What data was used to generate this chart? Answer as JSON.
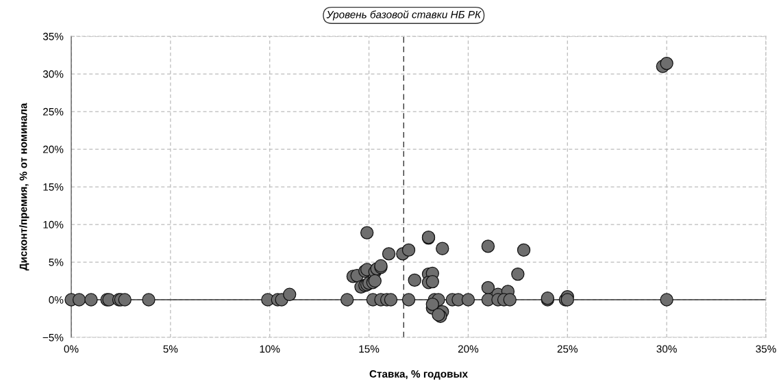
{
  "chart_data": {
    "type": "scatter",
    "xlabel": "Ставка, % годовых",
    "ylabel": "Дисконт/премия, % от номинала",
    "xlim": [
      0,
      35
    ],
    "ylim": [
      -5,
      35
    ],
    "xticks": [
      {
        "value": 0,
        "label": "0%"
      },
      {
        "value": 5,
        "label": "5%"
      },
      {
        "value": 10,
        "label": "10%"
      },
      {
        "value": 15,
        "label": "15%"
      },
      {
        "value": 20,
        "label": "20%"
      },
      {
        "value": 25,
        "label": "25%"
      },
      {
        "value": 30,
        "label": "30%"
      },
      {
        "value": 35,
        "label": "35%"
      }
    ],
    "yticks": [
      {
        "value": -5,
        "label": "−5%"
      },
      {
        "value": 0,
        "label": "0%"
      },
      {
        "value": 5,
        "label": "5%"
      },
      {
        "value": 10,
        "label": "10%"
      },
      {
        "value": 15,
        "label": "15%"
      },
      {
        "value": 20,
        "label": "20%"
      },
      {
        "value": 25,
        "label": "25%"
      },
      {
        "value": 30,
        "label": "30%"
      },
      {
        "value": 35,
        "label": "35%"
      }
    ],
    "grid": true,
    "marker": "circle",
    "ref_lines": [
      {
        "axis": "x",
        "value": 16.75,
        "label": "Уровень базовой ставки НБ РК",
        "color": "#333333",
        "line_style": "dashed"
      }
    ],
    "series": [
      {
        "color": "#6e6e6e",
        "x": [
          0,
          0.4,
          1.0,
          1.8,
          1.9,
          2.4,
          2.5,
          2.7,
          3.9,
          9.9,
          10.4,
          10.6,
          11.0,
          14.9,
          18.0,
          18.0,
          18.7,
          21.0,
          22.8,
          16.0,
          16.7,
          17.0,
          22.5,
          14.2,
          14.4,
          14.8,
          14.9,
          15.3,
          15.4,
          15.6,
          15.6,
          14.6,
          14.8,
          14.9,
          15.0,
          15.2,
          15.3,
          17.3,
          18.0,
          18.2,
          18.0,
          18.2,
          21.0,
          21.5,
          22.0,
          13.9,
          15.2,
          15.6,
          15.9,
          16.1,
          17.0,
          18.3,
          18.5,
          19.2,
          19.5,
          20.0,
          21.0,
          21.5,
          21.8,
          22.1,
          24.0,
          24.9,
          18.2,
          18.2,
          18.7,
          18.6,
          18.5,
          24.0,
          25.0,
          25.0,
          30.0,
          29.8,
          30.0
        ],
        "values": [
          0,
          0,
          0,
          0,
          0,
          0,
          0,
          0,
          0,
          0,
          0,
          0,
          0.7,
          8.9,
          8.2,
          8.3,
          6.8,
          7.1,
          6.6,
          6.1,
          6.1,
          6.6,
          3.4,
          3.1,
          3.2,
          3.8,
          4.0,
          3.7,
          4.1,
          4.3,
          4.5,
          1.7,
          1.9,
          2.0,
          2.2,
          2.3,
          2.5,
          2.6,
          3.4,
          3.5,
          2.3,
          2.4,
          1.6,
          0.7,
          1.1,
          0,
          0,
          0,
          0,
          0,
          0,
          0,
          0,
          0,
          0,
          0,
          0,
          0,
          0,
          0,
          0,
          0,
          -1.1,
          -0.6,
          -1.6,
          -2.2,
          -2.0,
          0.2,
          0.4,
          0,
          0,
          31.0,
          31.4
        ]
      }
    ]
  }
}
